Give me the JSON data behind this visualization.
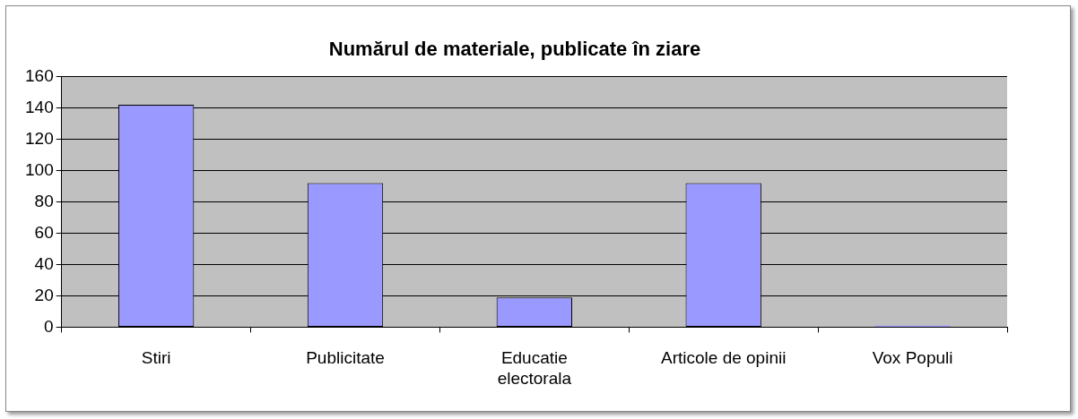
{
  "chart_data": {
    "type": "bar",
    "title": "Numărul de materiale, publicate în ziare",
    "categories": [
      "Stiri",
      "Publicitate",
      "Educatie electorala",
      "Articole de opinii",
      "Vox Populi"
    ],
    "values": [
      142,
      92,
      19,
      92,
      1
    ],
    "color": "#9999ff",
    "ylim": [
      0,
      160
    ],
    "yticks": [
      0,
      20,
      40,
      60,
      80,
      100,
      120,
      140,
      160
    ],
    "grid": "y",
    "legend": false
  }
}
